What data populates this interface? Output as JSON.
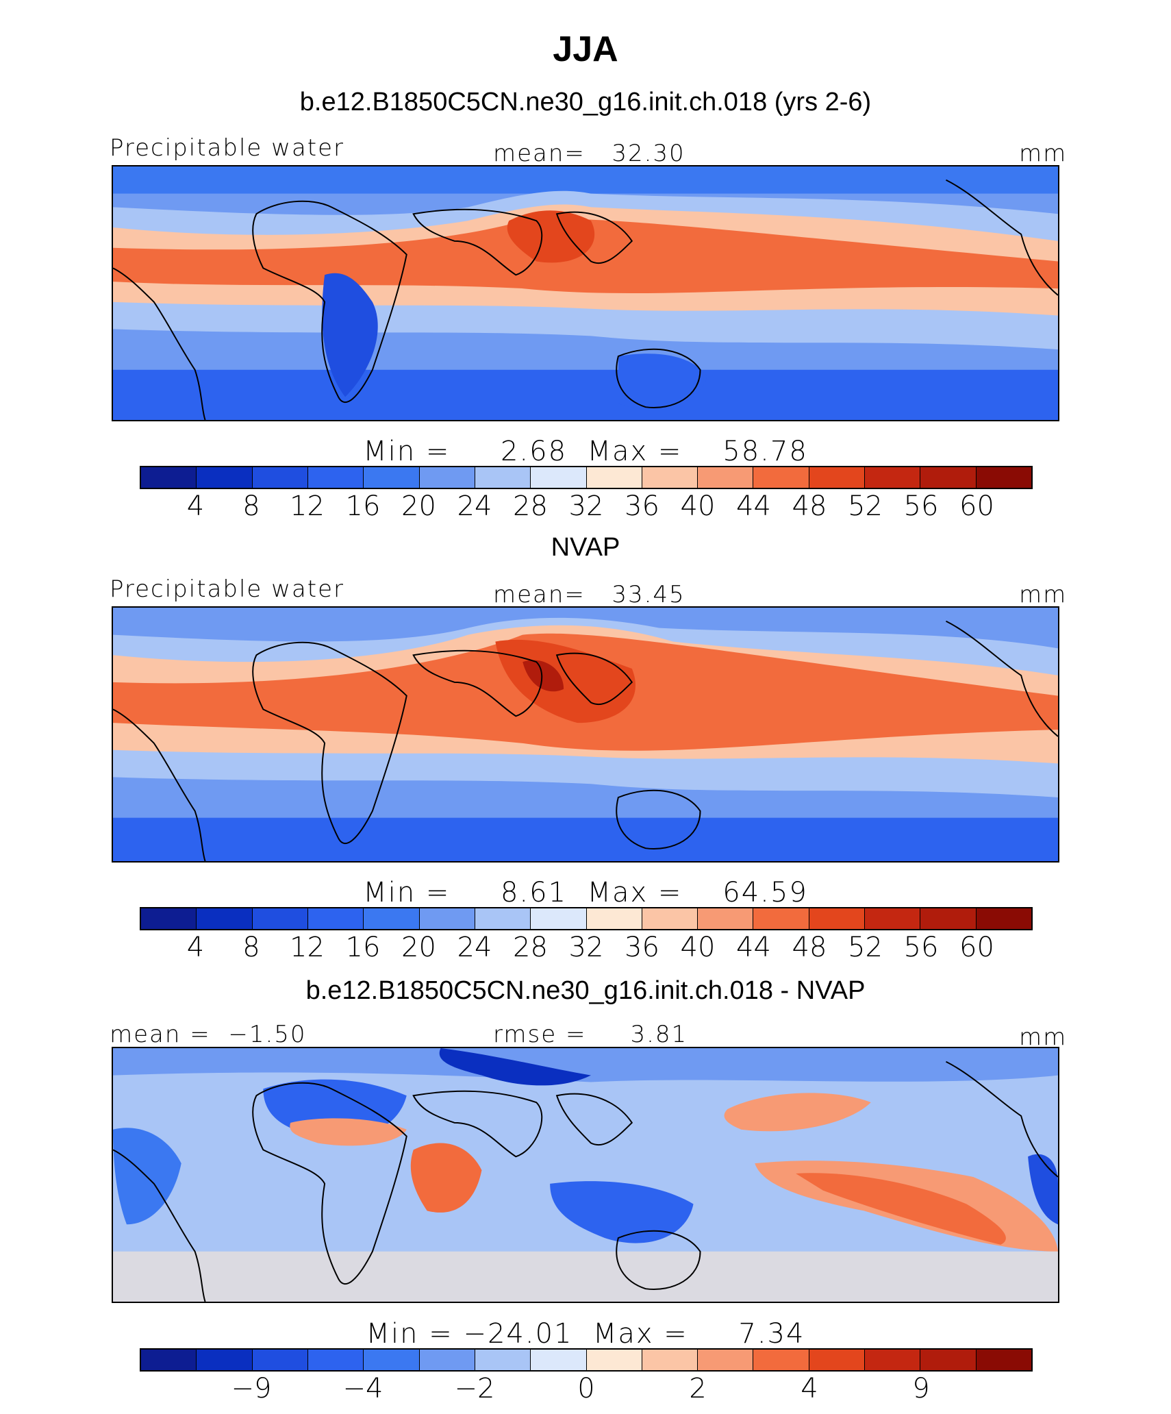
{
  "title": "JJA",
  "panels": [
    {
      "heading": "b.e12.B1850C5CN.ne30_g16.init.ch.018 (yrs 2-6)",
      "left_label": "Precipitable water",
      "center_label": "mean=   32.30",
      "right_label": "mm",
      "stats": "Min =     2.68  Max =    58.78",
      "colorbar_ticks": [
        "4",
        "8",
        "12",
        "16",
        "20",
        "24",
        "28",
        "32",
        "36",
        "40",
        "44",
        "48",
        "52",
        "56",
        "60"
      ]
    },
    {
      "heading": "NVAP",
      "left_label": "Precipitable water",
      "center_label": "mean=   33.45",
      "right_label": "mm",
      "stats": "Min =     8.61  Max =    64.59",
      "colorbar_ticks": [
        "4",
        "8",
        "12",
        "16",
        "20",
        "24",
        "28",
        "32",
        "36",
        "40",
        "44",
        "48",
        "52",
        "56",
        "60"
      ]
    },
    {
      "heading": "b.e12.B1850C5CN.ne30_g16.init.ch.018 - NVAP",
      "left_label": "mean =  −1.50",
      "center_label": "rmse =     3.81",
      "right_label": "mm",
      "stats": "Min = −24.01  Max =     7.34",
      "colorbar_ticks": [
        "−9",
        "−4",
        "−2",
        "0",
        "2",
        "4",
        "9"
      ]
    }
  ],
  "colorbar_colors": [
    "#0d1d92",
    "#0a2fc0",
    "#1f4ee0",
    "#2d63ef",
    "#3b78f1",
    "#6f9af2",
    "#a9c5f6",
    "#dce8fb",
    "#fde8d4",
    "#fbc5a6",
    "#f79a74",
    "#f26b3d",
    "#e3461d",
    "#c42711",
    "#b01c0c",
    "#8a0b04"
  ],
  "map_layers": {
    "ocean_base": "#6f9af2",
    "continents_outline": "#000000"
  }
}
